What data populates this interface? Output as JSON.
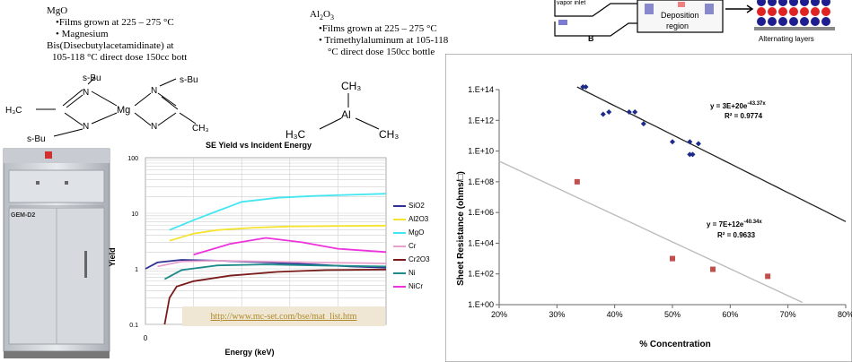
{
  "mgo": {
    "title": "MgO",
    "lines": [
      "•Films grown at 225 – 275 °C",
      "• Magnesium",
      "Bis(Disecbutylacetamidinate) at",
      "105-118 °C direct dose 150cc bott"
    ]
  },
  "al2o3": {
    "title_main": "Al",
    "title_sub1": "2",
    "title_mid": "O",
    "title_sub2": "3",
    "lines": [
      "•Films grown at 225 – 275 °C",
      "• Trimethylaluminum at 105-118",
      "°C direct dose 150cc bottle"
    ]
  },
  "mg_molecule": {
    "labels": [
      "s-Bu",
      "s-Bu",
      "s-Bu",
      "H₃C",
      "N",
      "N",
      "N",
      "N",
      "Mg",
      "CH₃"
    ]
  },
  "tma_molecule": {
    "labels": [
      "CH₃",
      "Al",
      "H₃C",
      "CH₃"
    ]
  },
  "ald_diagram": {
    "left_label": "vapor inlet",
    "deposition_label": "Deposition",
    "region_label": "region",
    "b_label": "B",
    "alternating_label": "Alternating layers"
  },
  "instrument": {
    "model_label": "GEM-D2"
  },
  "se_chart": {
    "chart_data": {
      "type": "line",
      "title": "SE Yield vs Incident Energy",
      "xlabel": "Energy (keV)",
      "ylabel": "Yield",
      "yscale": "log",
      "ylim": [
        0.1,
        100
      ],
      "yticks": [
        "100",
        "10",
        "1",
        "0.1"
      ],
      "xtick": "0",
      "legend_position": "right",
      "series": [
        {
          "name": "SiO2",
          "color": "#2e3192",
          "points": [
            [
              0.0,
              1.0
            ],
            [
              0.05,
              1.3
            ],
            [
              0.15,
              1.45
            ],
            [
              0.3,
              1.4
            ],
            [
              0.5,
              1.3
            ],
            [
              0.7,
              1.2
            ],
            [
              0.85,
              1.1
            ],
            [
              1.0,
              1.05
            ]
          ]
        },
        {
          "name": "Al2O3",
          "color": "#f5e330",
          "points": [
            [
              0.1,
              3.2
            ],
            [
              0.2,
              4.3
            ],
            [
              0.3,
              5.0
            ],
            [
              0.45,
              5.5
            ],
            [
              0.6,
              5.8
            ],
            [
              0.8,
              5.9
            ],
            [
              1.0,
              6.0
            ]
          ]
        },
        {
          "name": "MgO",
          "color": "#44e6f2",
          "points": [
            [
              0.1,
              5.0
            ],
            [
              0.2,
              7.5
            ],
            [
              0.3,
              11
            ],
            [
              0.4,
              16
            ],
            [
              0.55,
              19
            ],
            [
              0.7,
              20.5
            ],
            [
              0.85,
              21.5
            ],
            [
              1.0,
              22.5
            ]
          ]
        },
        {
          "name": "Cr",
          "color": "#e8a0cf",
          "points": [
            [
              0.05,
              1.1
            ],
            [
              0.15,
              1.35
            ],
            [
              0.3,
              1.4
            ],
            [
              0.5,
              1.35
            ],
            [
              0.7,
              1.3
            ],
            [
              1.0,
              1.25
            ]
          ]
        },
        {
          "name": "Cr2O3",
          "color": "#7a1b1b",
          "points": [
            [
              0.08,
              0.1
            ],
            [
              0.1,
              0.3
            ],
            [
              0.13,
              0.48
            ],
            [
              0.2,
              0.6
            ],
            [
              0.35,
              0.75
            ],
            [
              0.55,
              0.88
            ],
            [
              0.75,
              0.95
            ],
            [
              1.0,
              0.97
            ]
          ]
        },
        {
          "name": "Ni",
          "color": "#1e8a8a",
          "points": [
            [
              0.08,
              0.65
            ],
            [
              0.15,
              0.95
            ],
            [
              0.3,
              1.15
            ],
            [
              0.5,
              1.2
            ],
            [
              0.7,
              1.15
            ],
            [
              1.0,
              1.1
            ]
          ]
        },
        {
          "name": "NiCr",
          "color": "#ee33dd",
          "points": [
            [
              0.2,
              1.8
            ],
            [
              0.35,
              2.8
            ],
            [
              0.5,
              3.6
            ],
            [
              0.65,
              3.0
            ],
            [
              0.8,
              2.3
            ],
            [
              1.0,
              2.0
            ]
          ]
        }
      ]
    },
    "url": "http://www.mc-set.com/bse/mat_list.htm"
  },
  "sr_chart": {
    "chart_data": {
      "type": "scatter",
      "xlabel": "% Concentration",
      "ylabel": "Sheet Resistance (ohms/□)",
      "yscale": "log",
      "xlim": [
        0.2,
        0.8
      ],
      "ylim": [
        1,
        100000000000000.0
      ],
      "xticks": [
        "20%",
        "30%",
        "40%",
        "50%",
        "60%",
        "70%",
        "80%"
      ],
      "yticks": [
        "1.E+14",
        "1.E+12",
        "1.E+10",
        "1.E+08",
        "1.E+06",
        "1.E+04",
        "1.E+02",
        "1.E+00"
      ],
      "series": [
        {
          "name": "",
          "color": "#1c2a8a",
          "marker": "diamond",
          "points": [
            [
              0.345,
              150000000000000.0
            ],
            [
              0.35,
              150000000000000.0
            ],
            [
              0.38,
              2500000000000.0
            ],
            [
              0.39,
              3500000000000.0
            ],
            [
              0.425,
              3500000000000.0
            ],
            [
              0.435,
              3500000000000.0
            ],
            [
              0.45,
              600000000000.0
            ],
            [
              0.5,
              40000000000.0
            ],
            [
              0.53,
              40000000000.0
            ],
            [
              0.53,
              6000000000.0
            ],
            [
              0.535,
              6000000000.0
            ],
            [
              0.545,
              30000000000.0
            ]
          ],
          "fit_equation": "y = 3E+20e",
          "fit_exp": "-43.37x",
          "r2": "R² = 0.9774",
          "fit_color": "#222222"
        },
        {
          "name": "",
          "color": "#c0504d",
          "marker": "square",
          "points": [
            [
              0.335,
              100000000.0
            ],
            [
              0.5,
              1000.0
            ],
            [
              0.57,
              200.0
            ],
            [
              0.665,
              70.0
            ]
          ],
          "fit_equation": "y = 7E+12e",
          "fit_exp": "-40.34x",
          "r2": "R² = 0.9633",
          "fit_color": "#bbbbbb"
        }
      ]
    }
  }
}
